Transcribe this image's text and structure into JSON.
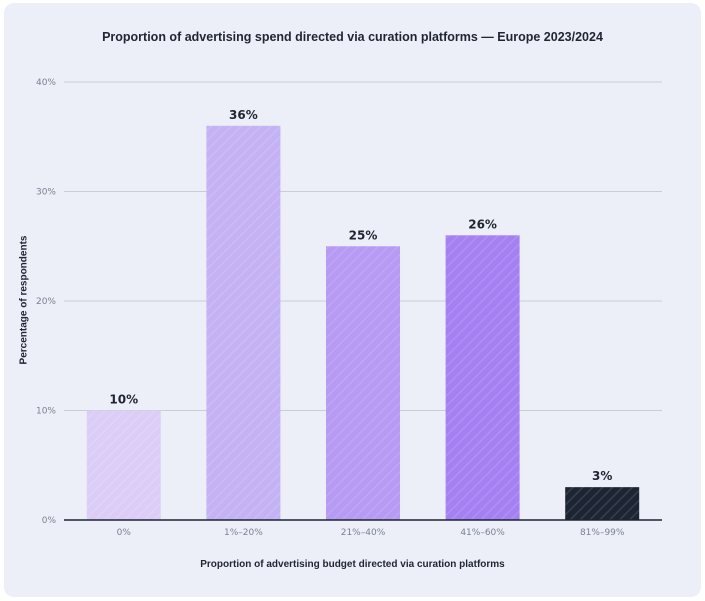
{
  "chart_data": {
    "type": "bar",
    "title": "Proportion of advertising spend directed via curation platforms — Europe 2023/2024",
    "xlabel": "Proportion of advertising budget directed via curation platforms",
    "ylabel": "Percentage of respondents",
    "categories": [
      "0%",
      "1%–20%",
      "21%–40%",
      "41%–60%",
      "81%–99%"
    ],
    "values": [
      10,
      36,
      25,
      26,
      3
    ],
    "data_labels": [
      "10%",
      "36%",
      "25%",
      "26%",
      "3%"
    ],
    "ylim": [
      0,
      40
    ],
    "yticks": [
      0,
      10,
      20,
      30,
      40
    ],
    "ytick_labels": [
      "0%",
      "10%",
      "20%",
      "30%",
      "40%"
    ],
    "grid": true,
    "legend": "none",
    "colors": [
      "#dccdf7",
      "#c4b2f5",
      "#b69af3",
      "#a580f2",
      "#1d2433"
    ]
  }
}
